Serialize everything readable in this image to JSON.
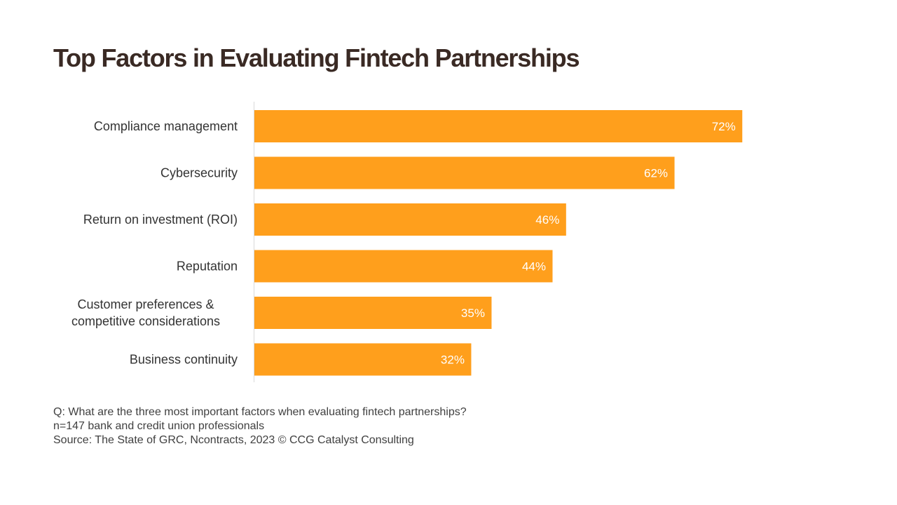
{
  "title": "Top Factors in Evaluating Fintech Partnerships",
  "chart_data": {
    "type": "bar",
    "orientation": "horizontal",
    "categories": [
      "Compliance management",
      "Cybersecurity",
      "Return on investment (ROI)",
      "Reputation",
      "Customer preferences & competitive considerations",
      "Business continuity"
    ],
    "values": [
      72,
      62,
      46,
      44,
      35,
      32
    ],
    "data_labels": [
      "72%",
      "62%",
      "46%",
      "44%",
      "35%",
      "32%"
    ],
    "value_unit": "%",
    "bar_color": "#FF9F1C",
    "label_color": "#ffffff",
    "xlim": [
      0,
      100
    ],
    "grid": false,
    "legend": "none"
  },
  "footnotes": [
    "Q: What are the three most important factors when evaluating fintech partnerships?",
    "n=147 bank and credit union professionals",
    "Source: The State of GRC, Ncontracts, 2023 © CCG Catalyst Consulting"
  ],
  "colors": {
    "title": "#3a2a24",
    "text": "#404040",
    "axis": "#d9d9d9"
  }
}
